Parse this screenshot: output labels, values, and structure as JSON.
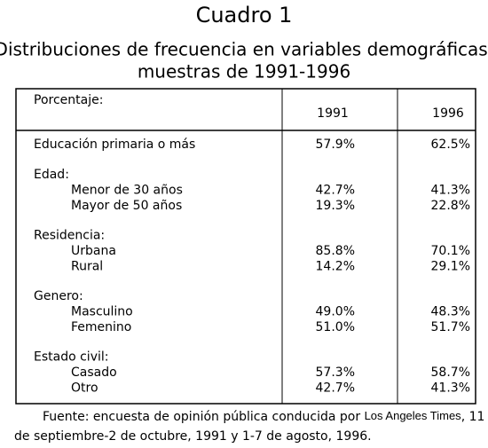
{
  "title": "Cuadro 1",
  "subtitle": [
    "Distribuciones de frecuencia en variables demográficas:",
    "muestras de 1991-1996"
  ],
  "table": {
    "header_label": "Porcentaje:",
    "columns": [
      "1991",
      "1996"
    ],
    "groups": [
      {
        "label": "Educación primaria o más",
        "values": [
          "57.9%",
          "62.5%"
        ]
      },
      {
        "label": "Edad:",
        "rows": [
          {
            "label": "Menor de 30 años",
            "values": [
              "42.7%",
              "41.3%"
            ]
          },
          {
            "label": "Mayor de 50 años",
            "values": [
              "19.3%",
              "22.8%"
            ]
          }
        ]
      },
      {
        "label": "Residencia:",
        "rows": [
          {
            "label": "Urbana",
            "values": [
              "85.8%",
              "70.1%"
            ]
          },
          {
            "label": "Rural",
            "values": [
              "14.2%",
              "29.1%"
            ]
          }
        ]
      },
      {
        "label": "Genero:",
        "rows": [
          {
            "label": "Masculino",
            "values": [
              "49.0%",
              "48.3%"
            ]
          },
          {
            "label": "Femenino",
            "values": [
              "51.0%",
              "51.7%"
            ]
          }
        ]
      },
      {
        "label": "Estado civil:",
        "rows": [
          {
            "label": "Casado",
            "values": [
              "57.3%",
              "58.7%"
            ]
          },
          {
            "label": "Otro",
            "values": [
              "42.7%",
              "41.3%"
            ]
          }
        ]
      }
    ]
  },
  "source": {
    "before": "Fuente: encuesta de opinión pública conducida por ",
    "emphasis": "Los Angeles Times",
    "after": ", 11",
    "line2": "de septiembre-2 de octubre, 1991 y 1-7 de agosto, 1996."
  }
}
